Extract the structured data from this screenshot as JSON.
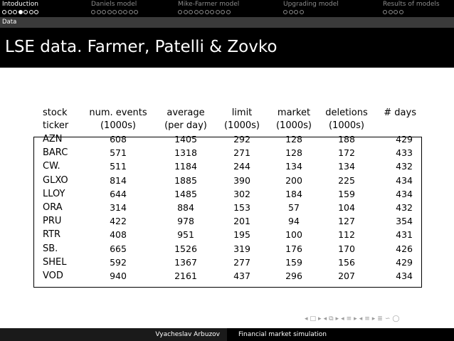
{
  "nav": {
    "sections": [
      {
        "title": "Intoduction",
        "dots": 7,
        "filled_index": 3,
        "active": true
      },
      {
        "title": "Daniels model",
        "dots": 9,
        "filled_index": -1,
        "active": false
      },
      {
        "title": "Mike-Farmer model",
        "dots": 10,
        "filled_index": -1,
        "active": false
      },
      {
        "title": "Upgrading model",
        "dots": 4,
        "filled_index": -1,
        "active": false
      },
      {
        "title": "Results of models",
        "dots": 4,
        "filled_index": -1,
        "active": false
      }
    ]
  },
  "subsection": "Data",
  "frame_title": "LSE data. Farmer, Patelli & Zovko",
  "table": {
    "headers": [
      [
        "stock",
        "ticker"
      ],
      [
        "num. events",
        "(1000s)"
      ],
      [
        "average",
        "(per day)"
      ],
      [
        "limit",
        "(1000s)"
      ],
      [
        "market",
        "(1000s)"
      ],
      [
        "deletions",
        "(1000s)"
      ],
      [
        "# days",
        ""
      ]
    ],
    "rows": [
      [
        "AZN",
        "608",
        "1405",
        "292",
        "128",
        "188",
        "429"
      ],
      [
        "BARC",
        "571",
        "1318",
        "271",
        "128",
        "172",
        "433"
      ],
      [
        "CW.",
        "511",
        "1184",
        "244",
        "134",
        "134",
        "432"
      ],
      [
        "GLXO",
        "814",
        "1885",
        "390",
        "200",
        "225",
        "434"
      ],
      [
        "LLOY",
        "644",
        "1485",
        "302",
        "184",
        "159",
        "434"
      ],
      [
        "ORA",
        "314",
        "884",
        "153",
        "57",
        "104",
        "432"
      ],
      [
        "PRU",
        "422",
        "978",
        "201",
        "94",
        "127",
        "354"
      ],
      [
        "RTR",
        "408",
        "951",
        "195",
        "100",
        "112",
        "431"
      ],
      [
        "SB.",
        "665",
        "1526",
        "319",
        "176",
        "170",
        "426"
      ],
      [
        "SHEL",
        "592",
        "1367",
        "277",
        "159",
        "156",
        "429"
      ],
      [
        "VOD",
        "940",
        "2161",
        "437",
        "296",
        "207",
        "434"
      ]
    ]
  },
  "footer": {
    "author": "Vyacheslav Arbuzov",
    "talk": "Financial market simulation"
  },
  "beamer_nav_icons": [
    "slide-back-icon",
    "slide-forward-icon",
    "frame-back-icon",
    "frame-forward-icon",
    "subsection-back-icon",
    "subsection-forward-icon",
    "section-back-icon",
    "section-forward-icon",
    "align-icon",
    "search-icon"
  ]
}
